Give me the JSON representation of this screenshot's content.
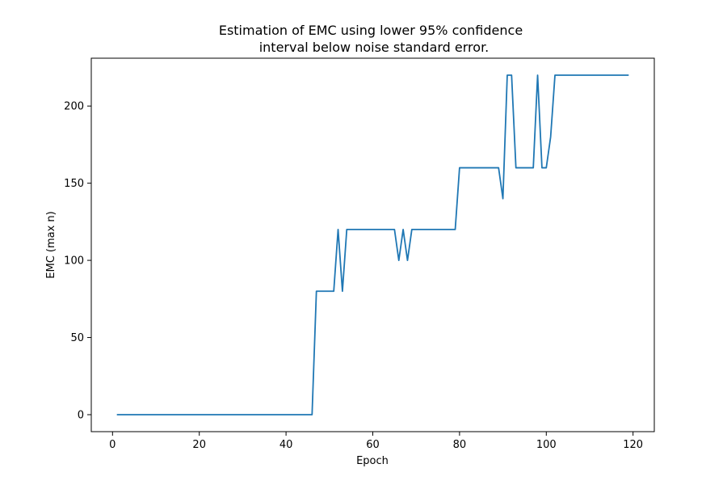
{
  "chart_data": {
    "type": "line",
    "title_lines": [
      "Estimation of EMC using lower 95% confidence",
      "interval below noise standard error."
    ],
    "xlabel": "Epoch",
    "ylabel": "EMC (max n)",
    "xlim": [
      -4.9,
      124.9
    ],
    "ylim": [
      -11,
      231
    ],
    "xticks": [
      0,
      20,
      40,
      60,
      80,
      100,
      120
    ],
    "yticks": [
      0,
      50,
      100,
      150,
      200
    ],
    "grid": false,
    "series": [
      {
        "color": "#1f77b4",
        "x": [
          1,
          2,
          3,
          4,
          5,
          6,
          7,
          8,
          9,
          10,
          11,
          12,
          13,
          14,
          15,
          16,
          17,
          18,
          19,
          20,
          21,
          22,
          23,
          24,
          25,
          26,
          27,
          28,
          29,
          30,
          31,
          32,
          33,
          34,
          35,
          36,
          37,
          38,
          39,
          40,
          41,
          42,
          43,
          44,
          45,
          46,
          47,
          48,
          49,
          50,
          51,
          52,
          53,
          54,
          55,
          56,
          57,
          58,
          59,
          60,
          61,
          62,
          63,
          64,
          65,
          66,
          67,
          68,
          69,
          70,
          71,
          72,
          73,
          74,
          75,
          76,
          77,
          78,
          79,
          80,
          81,
          82,
          83,
          84,
          85,
          86,
          87,
          88,
          89,
          90,
          91,
          92,
          93,
          94,
          95,
          96,
          97,
          98,
          99,
          100,
          101,
          102,
          103,
          104,
          105,
          106,
          107,
          108,
          109,
          110,
          111,
          112,
          113,
          114,
          115,
          116,
          117,
          118,
          119
        ],
        "y": [
          0,
          0,
          0,
          0,
          0,
          0,
          0,
          0,
          0,
          0,
          0,
          0,
          0,
          0,
          0,
          0,
          0,
          0,
          0,
          0,
          0,
          0,
          0,
          0,
          0,
          0,
          0,
          0,
          0,
          0,
          0,
          0,
          0,
          0,
          0,
          0,
          0,
          0,
          0,
          0,
          0,
          0,
          0,
          0,
          0,
          0,
          80,
          80,
          80,
          80,
          80,
          120,
          80,
          120,
          120,
          120,
          120,
          120,
          120,
          120,
          120,
          120,
          120,
          120,
          120,
          100,
          120,
          100,
          120,
          120,
          120,
          120,
          120,
          120,
          120,
          120,
          120,
          120,
          120,
          160,
          160,
          160,
          160,
          160,
          160,
          160,
          160,
          160,
          160,
          140,
          220,
          220,
          160,
          160,
          160,
          160,
          160,
          220,
          160,
          160,
          180,
          220,
          220,
          220,
          220,
          220,
          220,
          220,
          220,
          220,
          220,
          220,
          220,
          220,
          220,
          220,
          220,
          220,
          220
        ]
      }
    ]
  }
}
